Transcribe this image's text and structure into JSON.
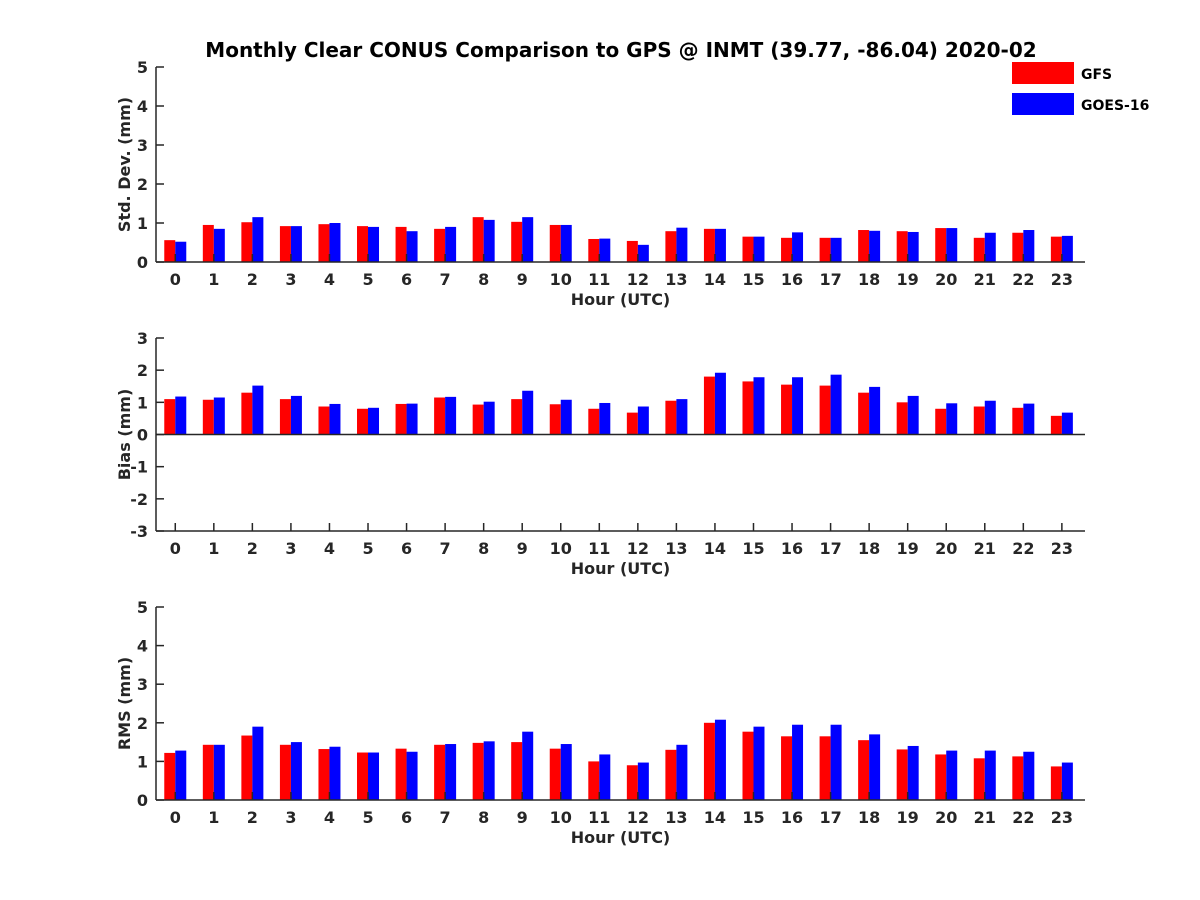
{
  "title": "Monthly Clear CONUS Comparison to GPS @ INMT (39.77, -86.04) 2020-02",
  "legend": {
    "placement": "top-right",
    "items": [
      {
        "name": "GFS",
        "color": "#ff0000"
      },
      {
        "name": "GOES-16",
        "color": "#0000ff"
      }
    ]
  },
  "chart_data": [
    {
      "type": "bar",
      "xlabel": "Hour (UTC)",
      "ylabel": "Std. Dev. (mm)",
      "ylim": [
        0,
        5
      ],
      "yticks": [
        "0",
        "1",
        "2",
        "3",
        "4",
        "5"
      ],
      "categories": [
        "0",
        "1",
        "2",
        "3",
        "4",
        "5",
        "6",
        "7",
        "8",
        "9",
        "10",
        "11",
        "12",
        "13",
        "14",
        "15",
        "16",
        "17",
        "18",
        "19",
        "20",
        "21",
        "22",
        "23"
      ],
      "series": [
        {
          "name": "GFS",
          "color": "#ff0000",
          "values": [
            0.56,
            0.95,
            1.02,
            0.92,
            0.97,
            0.92,
            0.9,
            0.85,
            1.15,
            1.03,
            0.95,
            0.59,
            0.54,
            0.79,
            0.85,
            0.65,
            0.62,
            0.62,
            0.82,
            0.79,
            0.87,
            0.62,
            0.75,
            0.65
          ]
        },
        {
          "name": "GOES-16",
          "color": "#0000ff",
          "values": [
            0.52,
            0.85,
            1.15,
            0.92,
            1.0,
            0.9,
            0.79,
            0.9,
            1.08,
            1.15,
            0.95,
            0.6,
            0.44,
            0.88,
            0.85,
            0.65,
            0.76,
            0.62,
            0.8,
            0.77,
            0.87,
            0.75,
            0.82,
            0.67
          ]
        }
      ]
    },
    {
      "type": "bar",
      "xlabel": "Hour (UTC)",
      "ylabel": "Bias (mm)",
      "ylim": [
        -3,
        3
      ],
      "yticks": [
        "-3",
        "-2",
        "-1",
        "0",
        "1",
        "2",
        "3"
      ],
      "categories": [
        "0",
        "1",
        "2",
        "3",
        "4",
        "5",
        "6",
        "7",
        "8",
        "9",
        "10",
        "11",
        "12",
        "13",
        "14",
        "15",
        "16",
        "17",
        "18",
        "19",
        "20",
        "21",
        "22",
        "23"
      ],
      "series": [
        {
          "name": "GFS",
          "color": "#ff0000",
          "values": [
            1.1,
            1.08,
            1.3,
            1.1,
            0.87,
            0.8,
            0.95,
            1.15,
            0.93,
            1.1,
            0.94,
            0.8,
            0.68,
            1.05,
            1.8,
            1.65,
            1.55,
            1.52,
            1.3,
            1.0,
            0.8,
            0.87,
            0.83,
            0.58
          ]
        },
        {
          "name": "GOES-16",
          "color": "#0000ff",
          "values": [
            1.18,
            1.15,
            1.52,
            1.2,
            0.95,
            0.83,
            0.96,
            1.17,
            1.02,
            1.36,
            1.08,
            0.98,
            0.87,
            1.1,
            1.92,
            1.78,
            1.78,
            1.86,
            1.48,
            1.2,
            0.97,
            1.05,
            0.96,
            0.68
          ]
        }
      ]
    },
    {
      "type": "bar",
      "xlabel": "Hour (UTC)",
      "ylabel": "RMS (mm)",
      "ylim": [
        0,
        5
      ],
      "yticks": [
        "0",
        "1",
        "2",
        "3",
        "4",
        "5"
      ],
      "categories": [
        "0",
        "1",
        "2",
        "3",
        "4",
        "5",
        "6",
        "7",
        "8",
        "9",
        "10",
        "11",
        "12",
        "13",
        "14",
        "15",
        "16",
        "17",
        "18",
        "19",
        "20",
        "21",
        "22",
        "23"
      ],
      "series": [
        {
          "name": "GFS",
          "color": "#ff0000",
          "values": [
            1.22,
            1.43,
            1.67,
            1.43,
            1.32,
            1.23,
            1.33,
            1.43,
            1.48,
            1.5,
            1.33,
            1.0,
            0.9,
            1.3,
            2.0,
            1.77,
            1.65,
            1.65,
            1.55,
            1.31,
            1.18,
            1.08,
            1.13,
            0.87
          ]
        },
        {
          "name": "GOES-16",
          "color": "#0000ff",
          "values": [
            1.28,
            1.43,
            1.9,
            1.5,
            1.38,
            1.23,
            1.25,
            1.45,
            1.52,
            1.77,
            1.45,
            1.18,
            0.97,
            1.43,
            2.08,
            1.9,
            1.95,
            1.95,
            1.7,
            1.4,
            1.28,
            1.28,
            1.25,
            0.97
          ]
        }
      ]
    }
  ]
}
